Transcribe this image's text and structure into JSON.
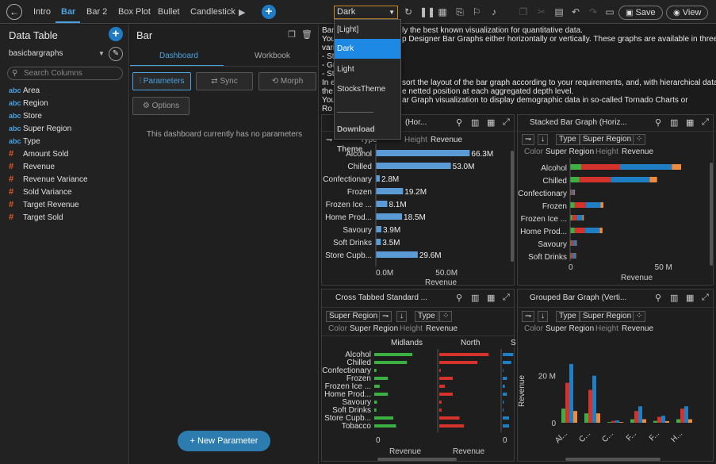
{
  "topbar": {
    "tabs": [
      "Intro",
      "Bar",
      "Bar 2",
      "Box Plot",
      "Bullet",
      "Candlestick"
    ],
    "active_tab": "Bar",
    "theme_value": "Dark",
    "save_label": "Save",
    "view_label": "View"
  },
  "left": {
    "title": "Data Table",
    "dataset": "basicbargraphs",
    "search_placeholder": "Search Columns",
    "columns": [
      {
        "type": "abc",
        "name": "Area"
      },
      {
        "type": "abc",
        "name": "Region"
      },
      {
        "type": "abc",
        "name": "Store"
      },
      {
        "type": "abc",
        "name": "Super Region"
      },
      {
        "type": "abc",
        "name": "Type"
      },
      {
        "type": "#",
        "name": "Amount Sold"
      },
      {
        "type": "#",
        "name": "Revenue"
      },
      {
        "type": "#",
        "name": "Revenue Variance"
      },
      {
        "type": "#",
        "name": "Sold Variance"
      },
      {
        "type": "#",
        "name": "Target Revenue"
      },
      {
        "type": "#",
        "name": "Target Sold"
      }
    ]
  },
  "mid": {
    "title": "Bar",
    "tab_dashboard": "Dashboard",
    "tab_workbook": "Workbook",
    "btn_parameters": "Parameters",
    "btn_sync": "Sync",
    "btn_morph": "Morph",
    "btn_options": "Options",
    "empty_msg": "This dashboard currently has no parameters",
    "new_param": "New Parameter"
  },
  "description": [
    "Bar",
    "You",
    "vari",
    "- St",
    "- Gr",
    "- St",
    "In e",
    "the",
    "You",
    "Ro"
  ],
  "description_right": [
    "ly the best known visualization for quantitative data.",
    "p Designer Bar Graphs either horizontally or vertically. These graphs are available in three",
    "",
    "",
    "",
    "",
    "sort the layout of the bar graph according to your requirements, and, with hierarchical data,",
    "e netted position at each aggregated depth level.",
    "ar Graph visualization to display demographic data in so-called Tornado Charts or",
    ""
  ],
  "dropdown": {
    "items": [
      "[Light]",
      "Dark",
      "Light",
      "StocksTheme",
      "Download Theme"
    ],
    "selected": "Dark"
  },
  "viz1": {
    "title": "(Hor...",
    "type_label": "Type",
    "height_label": "Height",
    "height_value": "Revenue",
    "xaxis_title": "Revenue",
    "ticks": [
      "0.0M",
      "50.0M"
    ]
  },
  "viz2": {
    "title": "Stacked Bar Graph (Horiz...",
    "type_label": "Type",
    "type_value": "Super Region",
    "color_label": "Color",
    "color_value": "Super Region",
    "height_label": "Height",
    "height_value": "Revenue",
    "xaxis_title": "Revenue",
    "ticks": [
      "0",
      "50 M"
    ]
  },
  "viz3": {
    "title": "Cross Tabbed Standard ...",
    "chip_super_region": "Super Region",
    "type_label": "Type",
    "color_label": "Color",
    "color_value": "Super Region",
    "height_label": "Height",
    "height_value": "Revenue",
    "col_headers": [
      "Midlands",
      "North",
      "S"
    ],
    "xaxis_title": "Revenue",
    "ticks": [
      "0",
      "0"
    ]
  },
  "viz4": {
    "title": "Grouped Bar Graph (Verti...",
    "type_label": "Type",
    "type_value": "Super Region",
    "color_label": "Color",
    "color_value": "Super Region",
    "height_label": "Height",
    "height_value": "Revenue",
    "yaxis_title": "Revenue",
    "yticks": [
      "20 M",
      "0"
    ],
    "xlabels": [
      "Al...",
      "C...",
      "C...",
      "F...",
      "F...",
      "H..."
    ]
  },
  "chart_data": [
    {
      "type": "bar",
      "orientation": "horizontal",
      "categories": [
        "Alcohol",
        "Chilled",
        "Confectionary",
        "Frozen",
        "Frozen Ice ...",
        "Home Prod...",
        "Savoury",
        "Soft Drinks",
        "Store Cupb..."
      ],
      "values": [
        66.3,
        53.0,
        2.8,
        19.2,
        8.1,
        18.5,
        3.9,
        3.5,
        29.6
      ],
      "labels": [
        "66.3M",
        "53.0M",
        "2.8M",
        "19.2M",
        "8.1M",
        "18.5M",
        "3.9M",
        "3.5M",
        "29.6M"
      ],
      "xlabel": "Revenue",
      "xlim": [
        0,
        70
      ],
      "color": "#5b9bd5"
    },
    {
      "type": "bar",
      "orientation": "horizontal-stacked",
      "categories": [
        "Alcohol",
        "Chilled",
        "Confectionary",
        "Frozen",
        "Frozen Ice ...",
        "Home Prod...",
        "Savoury",
        "Soft Drinks"
      ],
      "series": [
        {
          "color": "#3cb043",
          "values": [
            6,
            5,
            0.5,
            2.5,
            1.2,
            2.5,
            0.6,
            0.5
          ]
        },
        {
          "color": "#d6322c",
          "values": [
            21,
            17,
            0.8,
            6,
            2.5,
            5.5,
            1.2,
            1
          ]
        },
        {
          "color": "#1f7fc4",
          "values": [
            28,
            21,
            1,
            8,
            3,
            8,
            1.5,
            1.4
          ]
        },
        {
          "color": "#f08a3c",
          "values": [
            5,
            4,
            0.3,
            1.5,
            0.7,
            1.5,
            0.3,
            0.3
          ]
        }
      ],
      "xlabel": "Revenue",
      "xlim": [
        0,
        75
      ]
    },
    {
      "type": "bar",
      "orientation": "vertical-grouped",
      "categories": [
        "Al...",
        "C...",
        "C...",
        "F...",
        "F...",
        "H..."
      ],
      "series": [
        {
          "color": "#3cb043",
          "values": [
            6,
            4,
            0.3,
            1.5,
            0.8,
            1.5
          ]
        },
        {
          "color": "#d6322c",
          "values": [
            17,
            14,
            0.8,
            5,
            2.5,
            6
          ]
        },
        {
          "color": "#1f7fc4",
          "values": [
            25,
            20,
            1,
            7,
            3,
            7
          ]
        },
        {
          "color": "#f08a3c",
          "values": [
            5,
            4,
            0.3,
            1.5,
            0.7,
            1.5
          ]
        }
      ],
      "ylabel": "Revenue",
      "ylim": [
        0,
        27
      ]
    },
    {
      "type": "bar",
      "orientation": "horizontal-crosstab",
      "categories": [
        "Alcohol",
        "Chilled",
        "Confectionary",
        "Frozen",
        "Frozen Ice ...",
        "Home Prod...",
        "Savoury",
        "Soft Drinks",
        "Store Cupb...",
        "Tobacco"
      ],
      "series": [
        {
          "name": "Midlands",
          "color": "#3cb043",
          "values": [
            7,
            6,
            0.4,
            2.5,
            1,
            2.5,
            0.5,
            0.4,
            3.5,
            4
          ]
        },
        {
          "name": "North",
          "color": "#d6322c",
          "values": [
            22,
            17,
            0.6,
            6,
            2.5,
            6,
            1,
            1,
            9,
            11
          ]
        },
        {
          "name": "S",
          "color": "#1f7fc4",
          "values": [
            5,
            4,
            0.3,
            2,
            1,
            2,
            0.5,
            0.4,
            3,
            3
          ]
        }
      ],
      "xlabel": "Revenue"
    }
  ]
}
